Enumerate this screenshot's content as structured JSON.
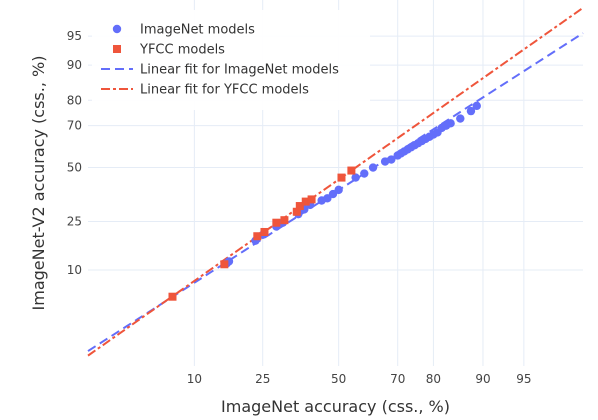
{
  "chart_data": {
    "type": "scatter",
    "xlabel": "ImageNet accuracy (css., %)",
    "ylabel": "ImageNet-V2 accuracy (css., %)",
    "x_scale": "probit",
    "y_scale": "probit",
    "xlim": [
      1.3,
      98.5
    ],
    "ylim": [
      0.65,
      98.2
    ],
    "x_ticks": [
      10,
      25,
      50,
      70,
      80,
      90,
      95
    ],
    "y_ticks": [
      10,
      25,
      50,
      70,
      80,
      90,
      95
    ],
    "grid": true,
    "legend_position": "top-left",
    "series": [
      {
        "name": "ImageNet models",
        "marker": "circle",
        "color": "#636efa",
        "points": [
          [
            16,
            11.5
          ],
          [
            16.5,
            12
          ],
          [
            23,
            18
          ],
          [
            25,
            20
          ],
          [
            29,
            23
          ],
          [
            31,
            24.5
          ],
          [
            36,
            28
          ],
          [
            38,
            30
          ],
          [
            40,
            32
          ],
          [
            44,
            34
          ],
          [
            46,
            35
          ],
          [
            48,
            37
          ],
          [
            50,
            39
          ],
          [
            56,
            45
          ],
          [
            59,
            47
          ],
          [
            62,
            50
          ],
          [
            66,
            53
          ],
          [
            68,
            54
          ],
          [
            70,
            56
          ],
          [
            71,
            57
          ],
          [
            72,
            58
          ],
          [
            73,
            59
          ],
          [
            74,
            60
          ],
          [
            75,
            61
          ],
          [
            76,
            62
          ],
          [
            77,
            63
          ],
          [
            78,
            64
          ],
          [
            79,
            65
          ],
          [
            80,
            66
          ],
          [
            81,
            67
          ],
          [
            82,
            69
          ],
          [
            83,
            70
          ],
          [
            84,
            71
          ],
          [
            86,
            73
          ],
          [
            88,
            76
          ],
          [
            89,
            78
          ]
        ]
      },
      {
        "name": "YFCC models",
        "marker": "square",
        "color": "#ef553b",
        "points": [
          [
            7,
            5.3
          ],
          [
            15.5,
            11.3
          ],
          [
            23.5,
            19.5
          ],
          [
            25.5,
            21
          ],
          [
            29,
            24.5
          ],
          [
            31.5,
            25.5
          ],
          [
            35.5,
            29
          ],
          [
            36.5,
            31.5
          ],
          [
            38.5,
            33.5
          ],
          [
            40.5,
            34.5
          ],
          [
            51,
            45
          ],
          [
            54.5,
            48.5
          ]
        ]
      },
      {
        "name": "Linear fit for ImageNet models",
        "line_style": "dash",
        "color": "#636efa",
        "fit_probit": {
          "slope": 0.905,
          "intercept": -0.282
        }
      },
      {
        "name": "Linear fit for YFCC models",
        "line_style": "dashdot",
        "color": "#ef553b",
        "fit_probit": {
          "slope": 0.99,
          "intercept": -0.15
        }
      }
    ]
  }
}
